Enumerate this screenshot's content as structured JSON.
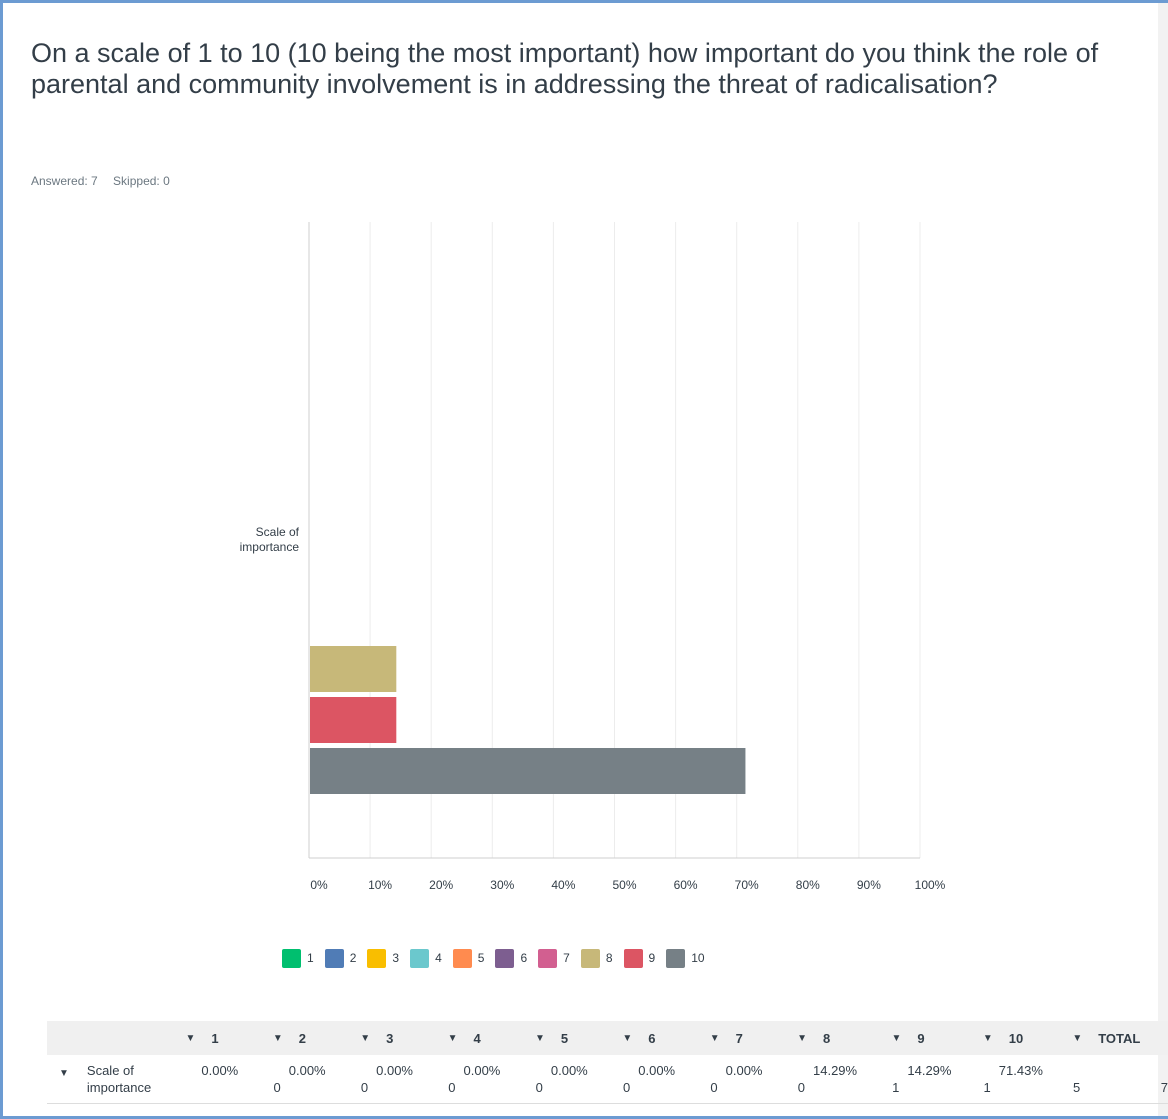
{
  "question": "On a scale of 1 to 10 (10 being the most important) how important do you think the role of parental and community involvement is in addressing the threat of radicalisation?",
  "answered": "Answered: 7",
  "skipped": "Skipped: 0",
  "chart_data": {
    "type": "bar",
    "orientation": "horizontal",
    "categories": [
      "Scale of importance"
    ],
    "series": [
      {
        "name": "1",
        "values": [
          0.0
        ],
        "color": "#00bf6f"
      },
      {
        "name": "2",
        "values": [
          0.0
        ],
        "color": "#507cb6"
      },
      {
        "name": "3",
        "values": [
          0.0
        ],
        "color": "#f9be00"
      },
      {
        "name": "4",
        "values": [
          0.0
        ],
        "color": "#6bc8cd"
      },
      {
        "name": "5",
        "values": [
          0.0
        ],
        "color": "#ff8b4f"
      },
      {
        "name": "6",
        "values": [
          0.0
        ],
        "color": "#7d5e90"
      },
      {
        "name": "7",
        "values": [
          0.0
        ],
        "color": "#d25f90"
      },
      {
        "name": "8",
        "values": [
          14.29
        ],
        "color": "#c7b879"
      },
      {
        "name": "9",
        "values": [
          14.29
        ],
        "color": "#dc5563"
      },
      {
        "name": "10",
        "values": [
          71.43
        ],
        "color": "#768086"
      }
    ],
    "xlim": [
      0,
      100
    ],
    "xticks": [
      "0%",
      "10%",
      "20%",
      "30%",
      "40%",
      "50%",
      "60%",
      "70%",
      "80%",
      "90%",
      "100%"
    ],
    "grid": true,
    "legend_position": "bottom"
  },
  "table": {
    "headers": [
      "1",
      "2",
      "3",
      "4",
      "5",
      "6",
      "7",
      "8",
      "9",
      "10",
      "TOTAL"
    ],
    "row_label_line1": "Scale of",
    "row_label_line2": "importance",
    "cells": [
      {
        "pct": "0.00%",
        "count": "0"
      },
      {
        "pct": "0.00%",
        "count": "0"
      },
      {
        "pct": "0.00%",
        "count": "0"
      },
      {
        "pct": "0.00%",
        "count": "0"
      },
      {
        "pct": "0.00%",
        "count": "0"
      },
      {
        "pct": "0.00%",
        "count": "0"
      },
      {
        "pct": "0.00%",
        "count": "0"
      },
      {
        "pct": "14.29%",
        "count": "1"
      },
      {
        "pct": "14.29%",
        "count": "1"
      },
      {
        "pct": "71.43%",
        "count": "5"
      }
    ],
    "total": "7"
  }
}
